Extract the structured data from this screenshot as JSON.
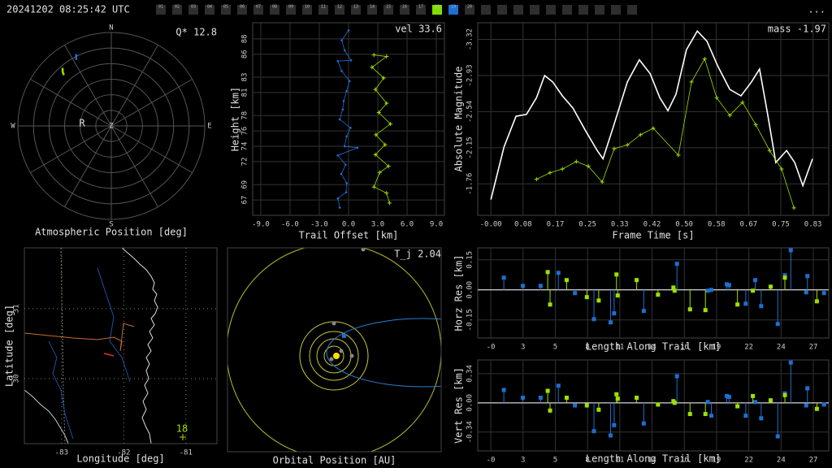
{
  "header": {
    "timestamp": "20241202 08:25:42 UTC",
    "menu": "...",
    "box_color": "#2e2e2e",
    "empty_slots": 10,
    "cameras": [
      {
        "label": "01"
      },
      {
        "label": "02"
      },
      {
        "label": "03"
      },
      {
        "label": "04"
      },
      {
        "label": "05"
      },
      {
        "label": "06"
      },
      {
        "label": "07"
      },
      {
        "label": "08"
      },
      {
        "label": "09"
      },
      {
        "label": "10"
      },
      {
        "label": "11"
      },
      {
        "label": "12"
      },
      {
        "label": "13"
      },
      {
        "label": "14"
      },
      {
        "label": "15"
      },
      {
        "label": "16"
      },
      {
        "label": "17"
      },
      {
        "label": "18",
        "color": "#7fe000"
      },
      {
        "label": "19",
        "color": "#1e6fd0"
      },
      {
        "label": "20"
      }
    ]
  },
  "chart_data": [
    {
      "type": "polar",
      "xlabel": "Atmospheric Position [deg]",
      "annotation": "Q* 12.8",
      "directions": [
        "N",
        "E",
        "S",
        "W"
      ],
      "center_label": "Z",
      "marker_label": "R",
      "rlim": [
        0,
        90
      ],
      "series": [
        {
          "color": "#1e6fd0",
          "azimuth": [
            334,
            333,
            332
          ],
          "zenith": [
            77,
            74.5,
            72
          ]
        },
        {
          "color": "#9fe000",
          "azimuth": [
            320,
            318,
            317
          ],
          "zenith": [
            73,
            70,
            67
          ]
        }
      ]
    },
    {
      "type": "line",
      "xlabel": "Trail Offset [km]",
      "ylabel": "Height [km]",
      "annotation": "vel 33.6",
      "grid": true,
      "xlim": [
        -9.83,
        9.83
      ],
      "ylim": [
        65,
        90.1
      ],
      "xticks": [
        {
          "value": -9,
          "label": "-9.0"
        },
        {
          "value": -6,
          "label": "-6.0"
        },
        {
          "value": -3,
          "label": "-3.0"
        },
        {
          "value": 0,
          "label": "0.0"
        },
        {
          "value": 3,
          "label": "3.0"
        },
        {
          "value": 6,
          "label": "6.0"
        },
        {
          "value": 9,
          "label": "9.0"
        }
      ],
      "yticks": [
        67,
        69,
        72,
        74,
        76,
        78,
        81,
        83,
        86,
        88
      ],
      "series": [
        {
          "color": "#1e6fd0",
          "marker": "dot",
          "x": [
            0,
            -0.7,
            -0.4,
            0.25,
            -1.1,
            -0.7,
            0.1,
            -0.2,
            -0.5,
            -0.6,
            -0.9,
            0.2,
            -0.2,
            -0.4,
            0.9,
            -1.1,
            -0.3,
            -0.75,
            -0.2,
            -0.25,
            -1.1,
            -0.9
          ],
          "values": [
            89.1,
            87.8,
            86.5,
            85.2,
            85.1,
            83.8,
            82.5,
            81.2,
            79.9,
            78.8,
            77.5,
            76.4,
            75.3,
            74.0,
            73.8,
            72.8,
            71.6,
            70.4,
            69.2,
            68.0,
            67.2,
            66.0
          ]
        },
        {
          "color": "#9fe000",
          "marker": "plus",
          "x": [
            2.6,
            3.9,
            2.4,
            3.6,
            2.75,
            3.9,
            3.1,
            4.3,
            2.8,
            3.75,
            2.75,
            4.1,
            3.2,
            2.6,
            3.9,
            4.2
          ],
          "values": [
            85.9,
            85.7,
            84.3,
            82.9,
            81.4,
            79.6,
            78.4,
            76.9,
            75.5,
            74.2,
            72.9,
            71.4,
            70.6,
            68.7,
            67.9,
            66.6
          ]
        }
      ]
    },
    {
      "type": "line",
      "xlabel": "Frame Time [s]",
      "ylabel": "Absolute Magnitude",
      "annotation": "mass -1.97",
      "grid": true,
      "xlim": [
        -0.034,
        0.874
      ],
      "ylim": [
        -1.42,
        -3.5
      ],
      "xticks": [
        {
          "value": 0,
          "label": "-0.00"
        },
        {
          "value": 0.0833,
          "label": "0.08"
        },
        {
          "value": 0.1667,
          "label": "0.17"
        },
        0.25,
        {
          "value": 0.3333,
          "label": "0.33"
        },
        {
          "value": 0.4167,
          "label": "0.42"
        },
        {
          "value": 0.5,
          "label": "0.50"
        },
        {
          "value": 0.5833,
          "label": "0.58"
        },
        {
          "value": 0.6667,
          "label": "0.67"
        },
        0.75,
        {
          "value": 0.8333,
          "label": "0.83"
        }
      ],
      "yticks": [
        -3.32,
        -2.93,
        -2.54,
        -2.15,
        -1.76
      ],
      "series": [
        {
          "color": "#ffffff",
          "marker": "none",
          "x": [
            0,
            0.034,
            0.065,
            0.092,
            0.118,
            0.139,
            0.16,
            0.185,
            0.212,
            0.244,
            0.275,
            0.29,
            0.317,
            0.353,
            0.384,
            0.412,
            0.437,
            0.458,
            0.479,
            0.506,
            0.534,
            0.559,
            0.586,
            0.618,
            0.647,
            0.674,
            0.695,
            0.716,
            0.737,
            0.765,
            0.786,
            0.807,
            0.832
          ],
          "values": [
            -1.59,
            -2.16,
            -2.49,
            -2.51,
            -2.69,
            -2.93,
            -2.86,
            -2.71,
            -2.58,
            -2.34,
            -2.12,
            -2.03,
            -2.38,
            -2.86,
            -3.1,
            -2.95,
            -2.69,
            -2.55,
            -2.73,
            -3.21,
            -3.41,
            -3.3,
            -3.04,
            -2.78,
            -2.71,
            -2.86,
            -3.0,
            -2.51,
            -1.99,
            -2.12,
            -1.99,
            -1.74,
            -2.03
          ]
        },
        {
          "color": "#9fe000",
          "marker": "plus",
          "x": [
            0.118,
            0.153,
            0.185,
            0.221,
            0.252,
            0.288,
            0.319,
            0.353,
            0.387,
            0.42,
            0.485,
            0.519,
            0.553,
            0.584,
            0.618,
            0.651,
            0.685,
            0.721,
            0.752,
            0.784
          ],
          "values": [
            -1.81,
            -1.88,
            -1.92,
            -2.0,
            -1.95,
            -1.78,
            -2.14,
            -2.18,
            -2.29,
            -2.36,
            -2.07,
            -2.86,
            -3.11,
            -2.69,
            -2.5,
            -2.64,
            -2.4,
            -2.12,
            -1.92,
            -1.5
          ]
        }
      ]
    },
    {
      "type": "map",
      "xlabel": "Longitude [deg]",
      "ylabel": "Latitude [deg]",
      "annotation": "18",
      "grid": true,
      "xlim": [
        -83.6,
        -80.5
      ],
      "ylim": [
        29.07,
        31.87
      ],
      "xticks": [
        -83,
        -82,
        -81
      ],
      "yticks": [
        30,
        31
      ]
    },
    {
      "type": "orbit",
      "xlabel": "Orbital Position [AU]",
      "annotation": "T_j 2.04"
    },
    {
      "type": "stem",
      "xlabel": "Length Along Trail [km]",
      "ylabel": "Horz Res [km]",
      "grid": true,
      "zero_line": true,
      "xlim": [
        -1.1,
        28.5
      ],
      "ylim": [
        -0.24,
        0.21
      ],
      "xticks": [
        {
          "value": 0,
          "label": "-0"
        },
        {
          "value": 2.72,
          "label": "3"
        },
        {
          "value": 5.44,
          "label": "5"
        },
        {
          "value": 8.16,
          "label": "8"
        },
        {
          "value": 10.88,
          "label": "11"
        },
        {
          "value": 13.6,
          "label": "14"
        },
        {
          "value": 16.32,
          "label": "16"
        },
        {
          "value": 19.04,
          "label": "19"
        },
        {
          "value": 21.76,
          "label": "22"
        },
        {
          "value": 24.48,
          "label": "24"
        },
        {
          "value": 27.2,
          "label": "27"
        }
      ],
      "yticks": [
        0.15,
        {
          "value": 0,
          "label": "0.00"
        },
        -0.15
      ],
      "series": [
        {
          "color": "#1e6fd0",
          "x": [
            1.1,
            2.7,
            4.2,
            5.7,
            7.1,
            8.7,
            10.1,
            10.4,
            12.9,
            15.7,
            18.3,
            18.6,
            19.9,
            20.1,
            21.5,
            22.3,
            22.8,
            24.2,
            24.8,
            25.3,
            26.6,
            26.7,
            28.1
          ],
          "values": [
            0.061,
            0.02,
            0.02,
            0.085,
            -0.016,
            -0.146,
            -0.162,
            -0.117,
            -0.105,
            0.13,
            -0.004,
            0,
            0.028,
            0.024,
            -0.069,
            0.049,
            -0.081,
            -0.17,
            0.073,
            0.198,
            -0.012,
            0.069,
            -0.016
          ]
        },
        {
          "color": "#9fe000",
          "x": [
            4.8,
            5.0,
            6.4,
            8.1,
            9.1,
            10.6,
            10.7,
            12.3,
            14.1,
            15.4,
            15.5,
            16.8,
            18.1,
            20.8,
            22.1,
            23.6,
            24.8,
            27.5
          ],
          "values": [
            0.089,
            -0.073,
            0.049,
            -0.036,
            -0.053,
            0.077,
            -0.028,
            0.049,
            -0.024,
            0.012,
            -0.004,
            -0.097,
            -0.101,
            -0.073,
            -0.004,
            0.016,
            0.061,
            -0.057
          ]
        }
      ]
    },
    {
      "type": "stem",
      "xlabel": "Length Along Trail [km]",
      "ylabel": "Vert Res [km]",
      "grid": true,
      "zero_line": true,
      "xlim": [
        -1.1,
        28.5
      ],
      "ylim": [
        -0.56,
        0.5
      ],
      "xticks": [
        {
          "value": 0,
          "label": "-0"
        },
        {
          "value": 2.72,
          "label": "3"
        },
        {
          "value": 5.44,
          "label": "5"
        },
        {
          "value": 8.16,
          "label": "8"
        },
        {
          "value": 10.88,
          "label": "11"
        },
        {
          "value": 13.6,
          "label": "14"
        },
        {
          "value": 16.32,
          "label": "16"
        },
        {
          "value": 19.04,
          "label": "19"
        },
        {
          "value": 21.76,
          "label": "22"
        },
        {
          "value": 24.48,
          "label": "24"
        },
        {
          "value": 27.2,
          "label": "27"
        }
      ],
      "yticks": [
        0.34,
        {
          "value": 0,
          "label": "0.00"
        },
        -0.34
      ],
      "series": [
        {
          "color": "#1e6fd0",
          "x": [
            1.1,
            2.7,
            4.2,
            5.7,
            7.1,
            8.7,
            10.1,
            10.4,
            12.9,
            15.7,
            18.3,
            18.6,
            19.9,
            20.1,
            21.5,
            22.3,
            22.8,
            24.2,
            24.8,
            25.3,
            26.6,
            26.7,
            28.1
          ],
          "values": [
            0.15,
            0.06,
            0.06,
            0.2,
            -0.03,
            -0.33,
            -0.38,
            -0.26,
            -0.24,
            0.31,
            0.01,
            -0.15,
            0.08,
            0.07,
            -0.15,
            0.01,
            -0.18,
            -0.39,
            0.11,
            0.47,
            -0.03,
            0.17,
            -0.02
          ]
        },
        {
          "color": "#9fe000",
          "x": [
            4.8,
            5.0,
            6.4,
            8.1,
            9.1,
            10.6,
            10.7,
            12.3,
            14.1,
            15.4,
            15.5,
            16.8,
            18.1,
            20.8,
            22.1,
            23.6,
            24.8,
            27.5
          ],
          "values": [
            0.14,
            -0.09,
            0.06,
            -0.03,
            -0.08,
            0.1,
            0.05,
            0.06,
            -0.02,
            0.02,
            0,
            -0.13,
            -0.13,
            -0.04,
            0.08,
            0.03,
            0.09,
            -0.07
          ]
        }
      ]
    }
  ]
}
